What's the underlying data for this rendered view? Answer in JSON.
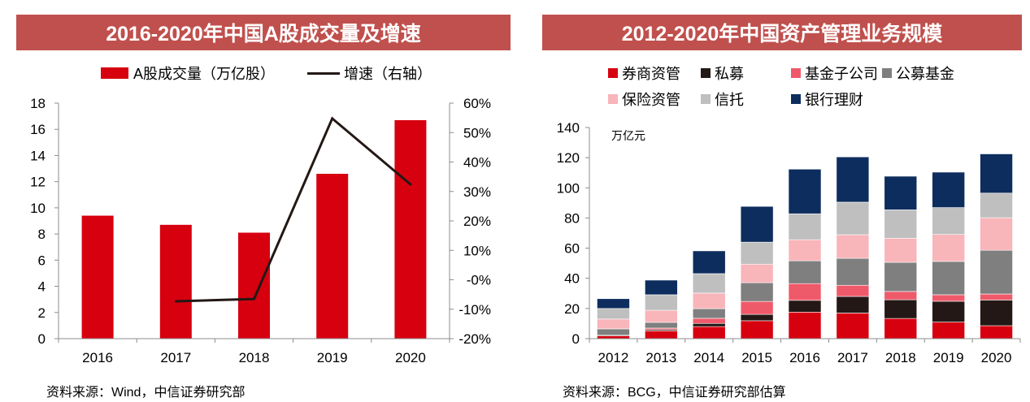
{
  "colors": {
    "banner": "#c0504d",
    "axis": "#8c8c8c"
  },
  "chart_data": [
    {
      "type": "bar",
      "title": "2016-2020年中国A股成交量及增速",
      "categories": [
        "2016",
        "2017",
        "2018",
        "2019",
        "2020"
      ],
      "series": [
        {
          "name": "A股成交量（万亿股）",
          "type": "bar",
          "color": "#d7000f",
          "values": [
            9.4,
            8.7,
            8.1,
            12.6,
            16.7
          ]
        },
        {
          "name": "增速（右轴）",
          "type": "line",
          "color": "#231815",
          "values": [
            null,
            -7.3,
            -6.5,
            54.8,
            32.4
          ]
        }
      ],
      "ylim": [
        0,
        18
      ],
      "yticks": [
        0,
        2,
        4,
        6,
        8,
        10,
        12,
        14,
        16,
        18
      ],
      "y2lim": [
        -20,
        60
      ],
      "y2ticks": [
        -20,
        -10,
        0,
        10,
        20,
        30,
        40,
        50,
        60
      ],
      "y2ticklabels": [
        "-20%",
        "-10%",
        "-0%",
        "10%",
        "20%",
        "30%",
        "40%",
        "50%",
        "60%"
      ],
      "grid": false,
      "legend_position": "top",
      "source": "资料来源：Wind，中信证券研究部"
    },
    {
      "type": "bar",
      "stacked": true,
      "title": "2012-2020年中国资产管理业务规模",
      "unit": "万亿元",
      "categories": [
        "2012",
        "2013",
        "2014",
        "2015",
        "2016",
        "2017",
        "2018",
        "2019",
        "2020"
      ],
      "series": [
        {
          "name": "券商资管",
          "color": "#d7000f",
          "values": [
            1.9,
            5.2,
            8.0,
            11.9,
            17.6,
            17.0,
            13.4,
            11.0,
            8.6
          ]
        },
        {
          "name": "私募",
          "color": "#231815",
          "values": [
            0.6,
            0.8,
            2.1,
            4.2,
            7.8,
            11.0,
            12.4,
            13.8,
            17.0
          ]
        },
        {
          "name": "基金子公司",
          "color": "#ef5a6b",
          "values": [
            0.0,
            1.0,
            3.4,
            8.6,
            11.1,
            7.4,
            5.5,
            4.3,
            4.0
          ]
        },
        {
          "name": "公募基金",
          "color": "#7f7f7f",
          "values": [
            4.0,
            3.8,
            6.4,
            12.4,
            15.1,
            17.9,
            19.3,
            22.1,
            29.0
          ]
        },
        {
          "name": "保险资管",
          "color": "#f8b5ba",
          "values": [
            6.5,
            8.0,
            10.3,
            12.3,
            14.0,
            15.6,
            16.0,
            17.9,
            21.6
          ]
        },
        {
          "name": "信托",
          "color": "#bfbfbf",
          "values": [
            7.0,
            10.3,
            12.9,
            14.6,
            17.2,
            21.6,
            18.8,
            17.8,
            16.3
          ]
        },
        {
          "name": "银行理财",
          "color": "#0d2d5e",
          "values": [
            6.5,
            9.7,
            15.1,
            23.7,
            29.6,
            30.0,
            22.3,
            23.5,
            26.0
          ]
        }
      ],
      "ylim": [
        0,
        140
      ],
      "yticks": [
        0,
        20,
        40,
        60,
        80,
        100,
        120,
        140
      ],
      "grid": false,
      "legend_position": "top",
      "source": "资料来源：BCG，中信证券研究部估算"
    }
  ]
}
